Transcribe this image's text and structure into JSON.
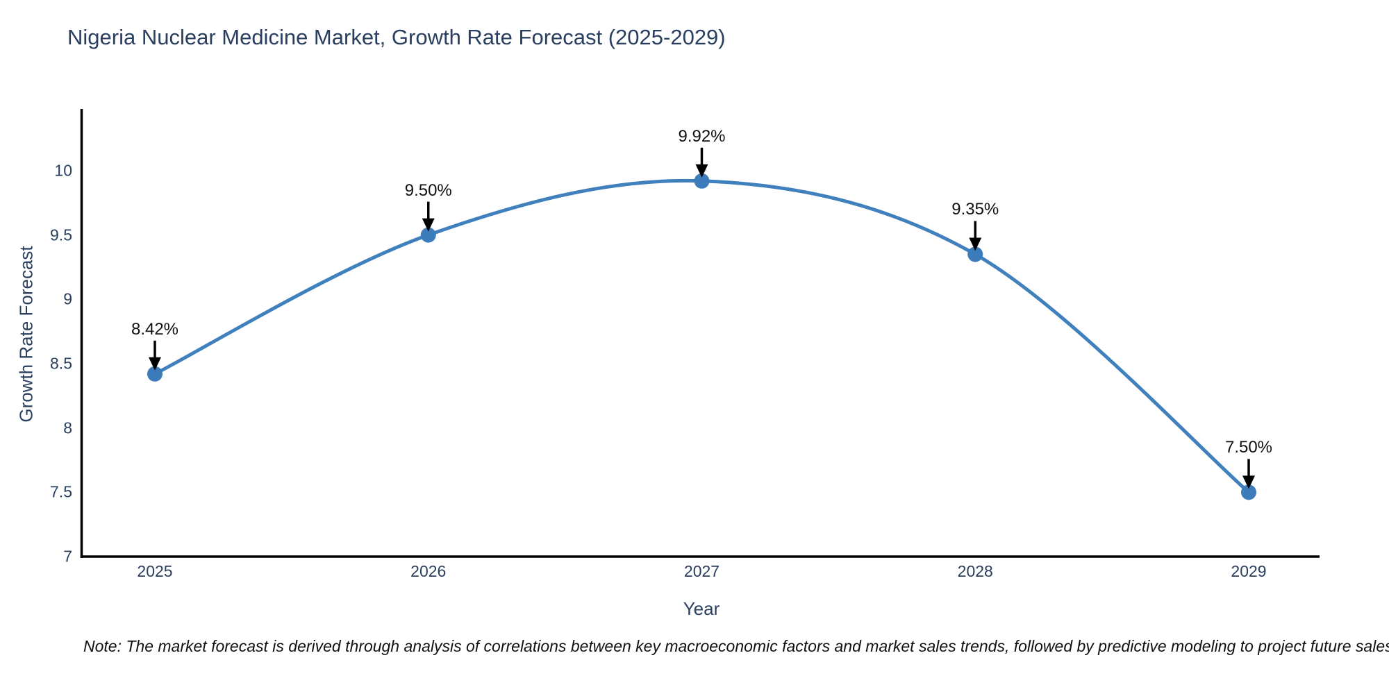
{
  "title": "Nigeria Nuclear Medicine Market, Growth Rate Forecast (2025-2029)",
  "note": "Note: The market forecast is derived through analysis of correlations between key macroeconomic factors and market sales trends, followed by predictive modeling to project future sales",
  "chart_data": {
    "type": "line",
    "title": "Nigeria Nuclear Medicine Market, Growth Rate Forecast (2025-2029)",
    "xlabel": "Year",
    "ylabel": "Growth Rate Forecast",
    "categories": [
      "2025",
      "2026",
      "2027",
      "2028",
      "2029"
    ],
    "series": [
      {
        "name": "Growth Rate Forecast",
        "values": [
          8.42,
          9.5,
          9.92,
          9.35,
          7.5
        ]
      }
    ],
    "point_labels": [
      "8.42%",
      "9.50%",
      "9.92%",
      "9.35%",
      "7.50%"
    ],
    "yticks": [
      7,
      7.5,
      8,
      8.5,
      9,
      9.5,
      10
    ],
    "ytick_labels": [
      "7",
      "7.5",
      "8",
      "8.5",
      "9",
      "9.5",
      "10"
    ],
    "ylim": [
      7,
      10.48
    ],
    "grid": false,
    "legend_position": "none",
    "line_shape": "spline",
    "line_color": "#4080bd",
    "marker_color": "#3d7cba",
    "annotation_color": "#000000",
    "axis_color": "#000000",
    "text_color": "#2a3f5f"
  }
}
